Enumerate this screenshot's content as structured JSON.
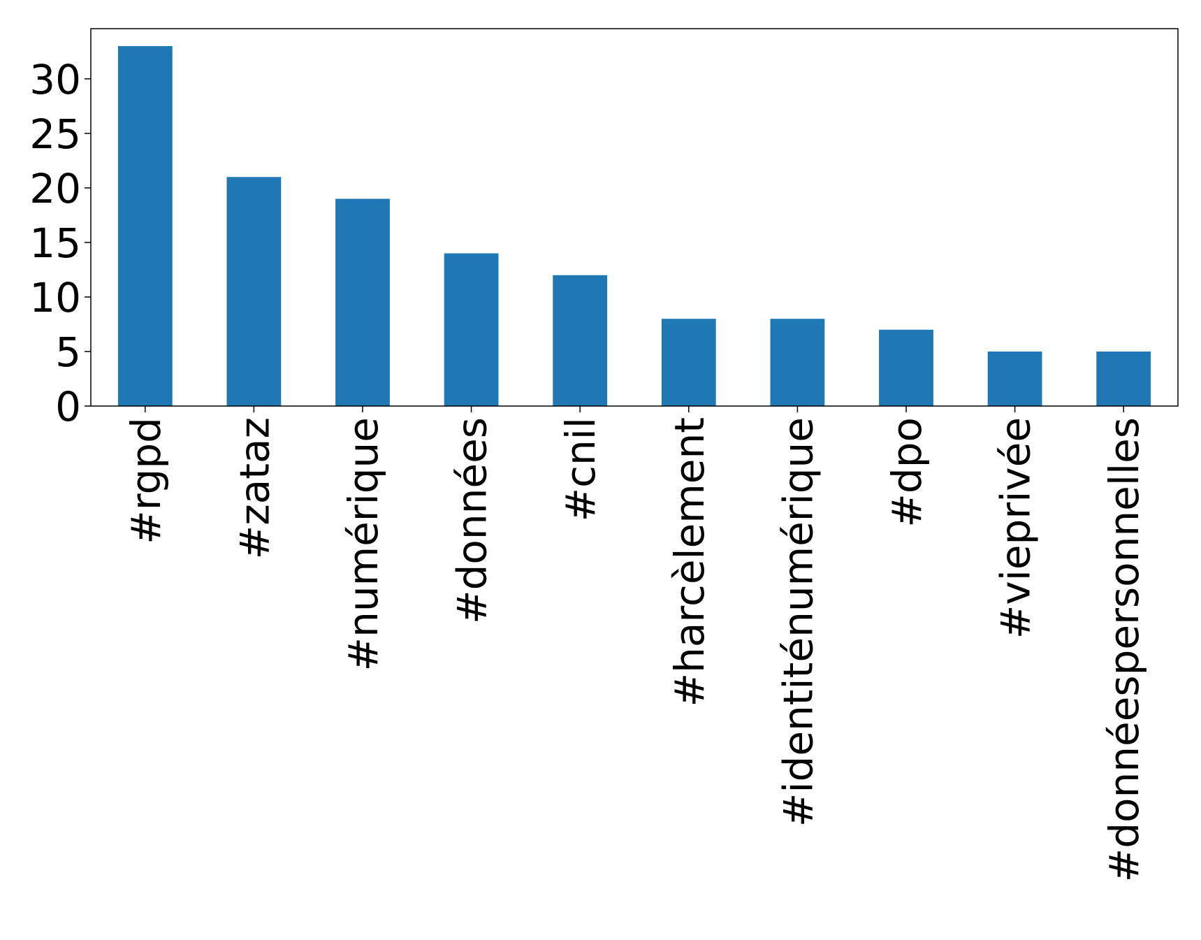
{
  "chart_data": {
    "type": "bar",
    "categories": [
      "#rgpd",
      "#zataz",
      "#numérique",
      "#données",
      "#cnil",
      "#harcèlement",
      "#identiténumérique",
      "#dpo",
      "#vieprivée",
      "#donnéespersonnelles"
    ],
    "values": [
      33,
      21,
      19,
      14,
      12,
      8,
      8,
      7,
      5,
      5
    ],
    "color": "#1f77b4",
    "ylim": [
      0,
      34.6
    ],
    "yticks": [
      0,
      5,
      10,
      15,
      20,
      25,
      30
    ],
    "grid": false
  }
}
